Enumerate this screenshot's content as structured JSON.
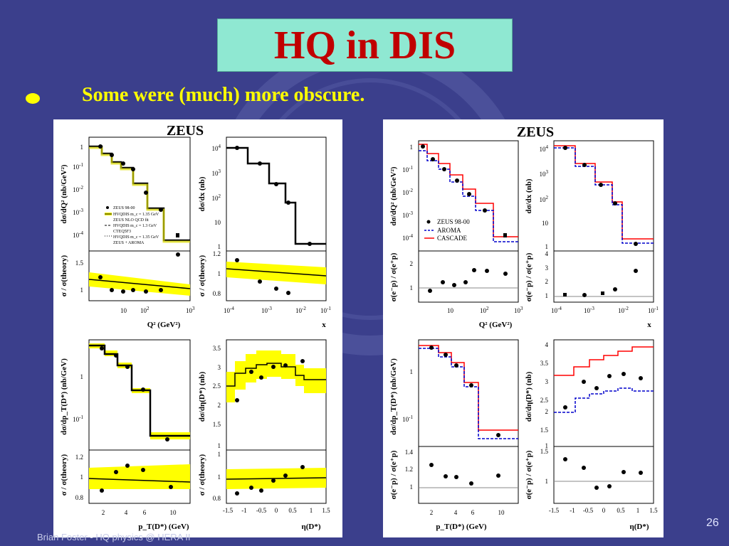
{
  "slide": {
    "title": "HQ in DIS",
    "bullet": "Some were (much) more obscure.",
    "footer": "Brian Foster - HQ physics @ HERA II",
    "page_number": "26"
  },
  "colors": {
    "background": "#3b3f8c",
    "title_box": "#8fe8d2",
    "title_text": "#c00000",
    "bullet": "#ffff00",
    "band": "#ffff00",
    "red": "#ff0000",
    "blue": "#0000cc"
  },
  "left_figure": {
    "header": "ZEUS",
    "legend": [
      "ZEUS 98-00",
      "HVQDIS m_c = 1.35 GeV",
      "ZEUS NLO QCD fit",
      "HVQDIS m_c = 1.3 GeV",
      "CTEQ5F3",
      "HVQDIS m_c = 1.35 GeV",
      "ZEUS + AROMA"
    ],
    "x_labels": [
      "Q² (GeV²)",
      "x",
      "p_T(D*) (GeV)",
      "η(D*)"
    ],
    "y_labels": [
      "dσ/dQ² (nb/GeV²)",
      "dσ/dx (nb)",
      "σ / σ(theory)",
      "σ / σ(theory)",
      "dσ/dp_T(D*) (nb/GeV)",
      "dσ/dη(D*) (nb)",
      "σ / σ(theory)",
      "σ / σ(theory)"
    ]
  },
  "right_figure": {
    "header": "ZEUS",
    "legend": [
      "ZEUS 98-00",
      "AROMA",
      "CASCADE"
    ],
    "x_labels": [
      "Q² (GeV²)",
      "x",
      "p_T(D*) (GeV)",
      "η(D*)"
    ],
    "y_labels": [
      "dσ/dQ² (nb/GeV²)",
      "dσ/dx (nb)",
      "σ(e⁻p) / σ(e⁺p)",
      "σ(e⁻p) / σ(e⁺p)",
      "dσ/dp_T(D*) (nb/GeV)",
      "dσ/dη(D*) (nb)",
      "σ(e⁻p) / σ(e⁺p)",
      "σ(e⁻p) / σ(e⁺p)"
    ]
  }
}
